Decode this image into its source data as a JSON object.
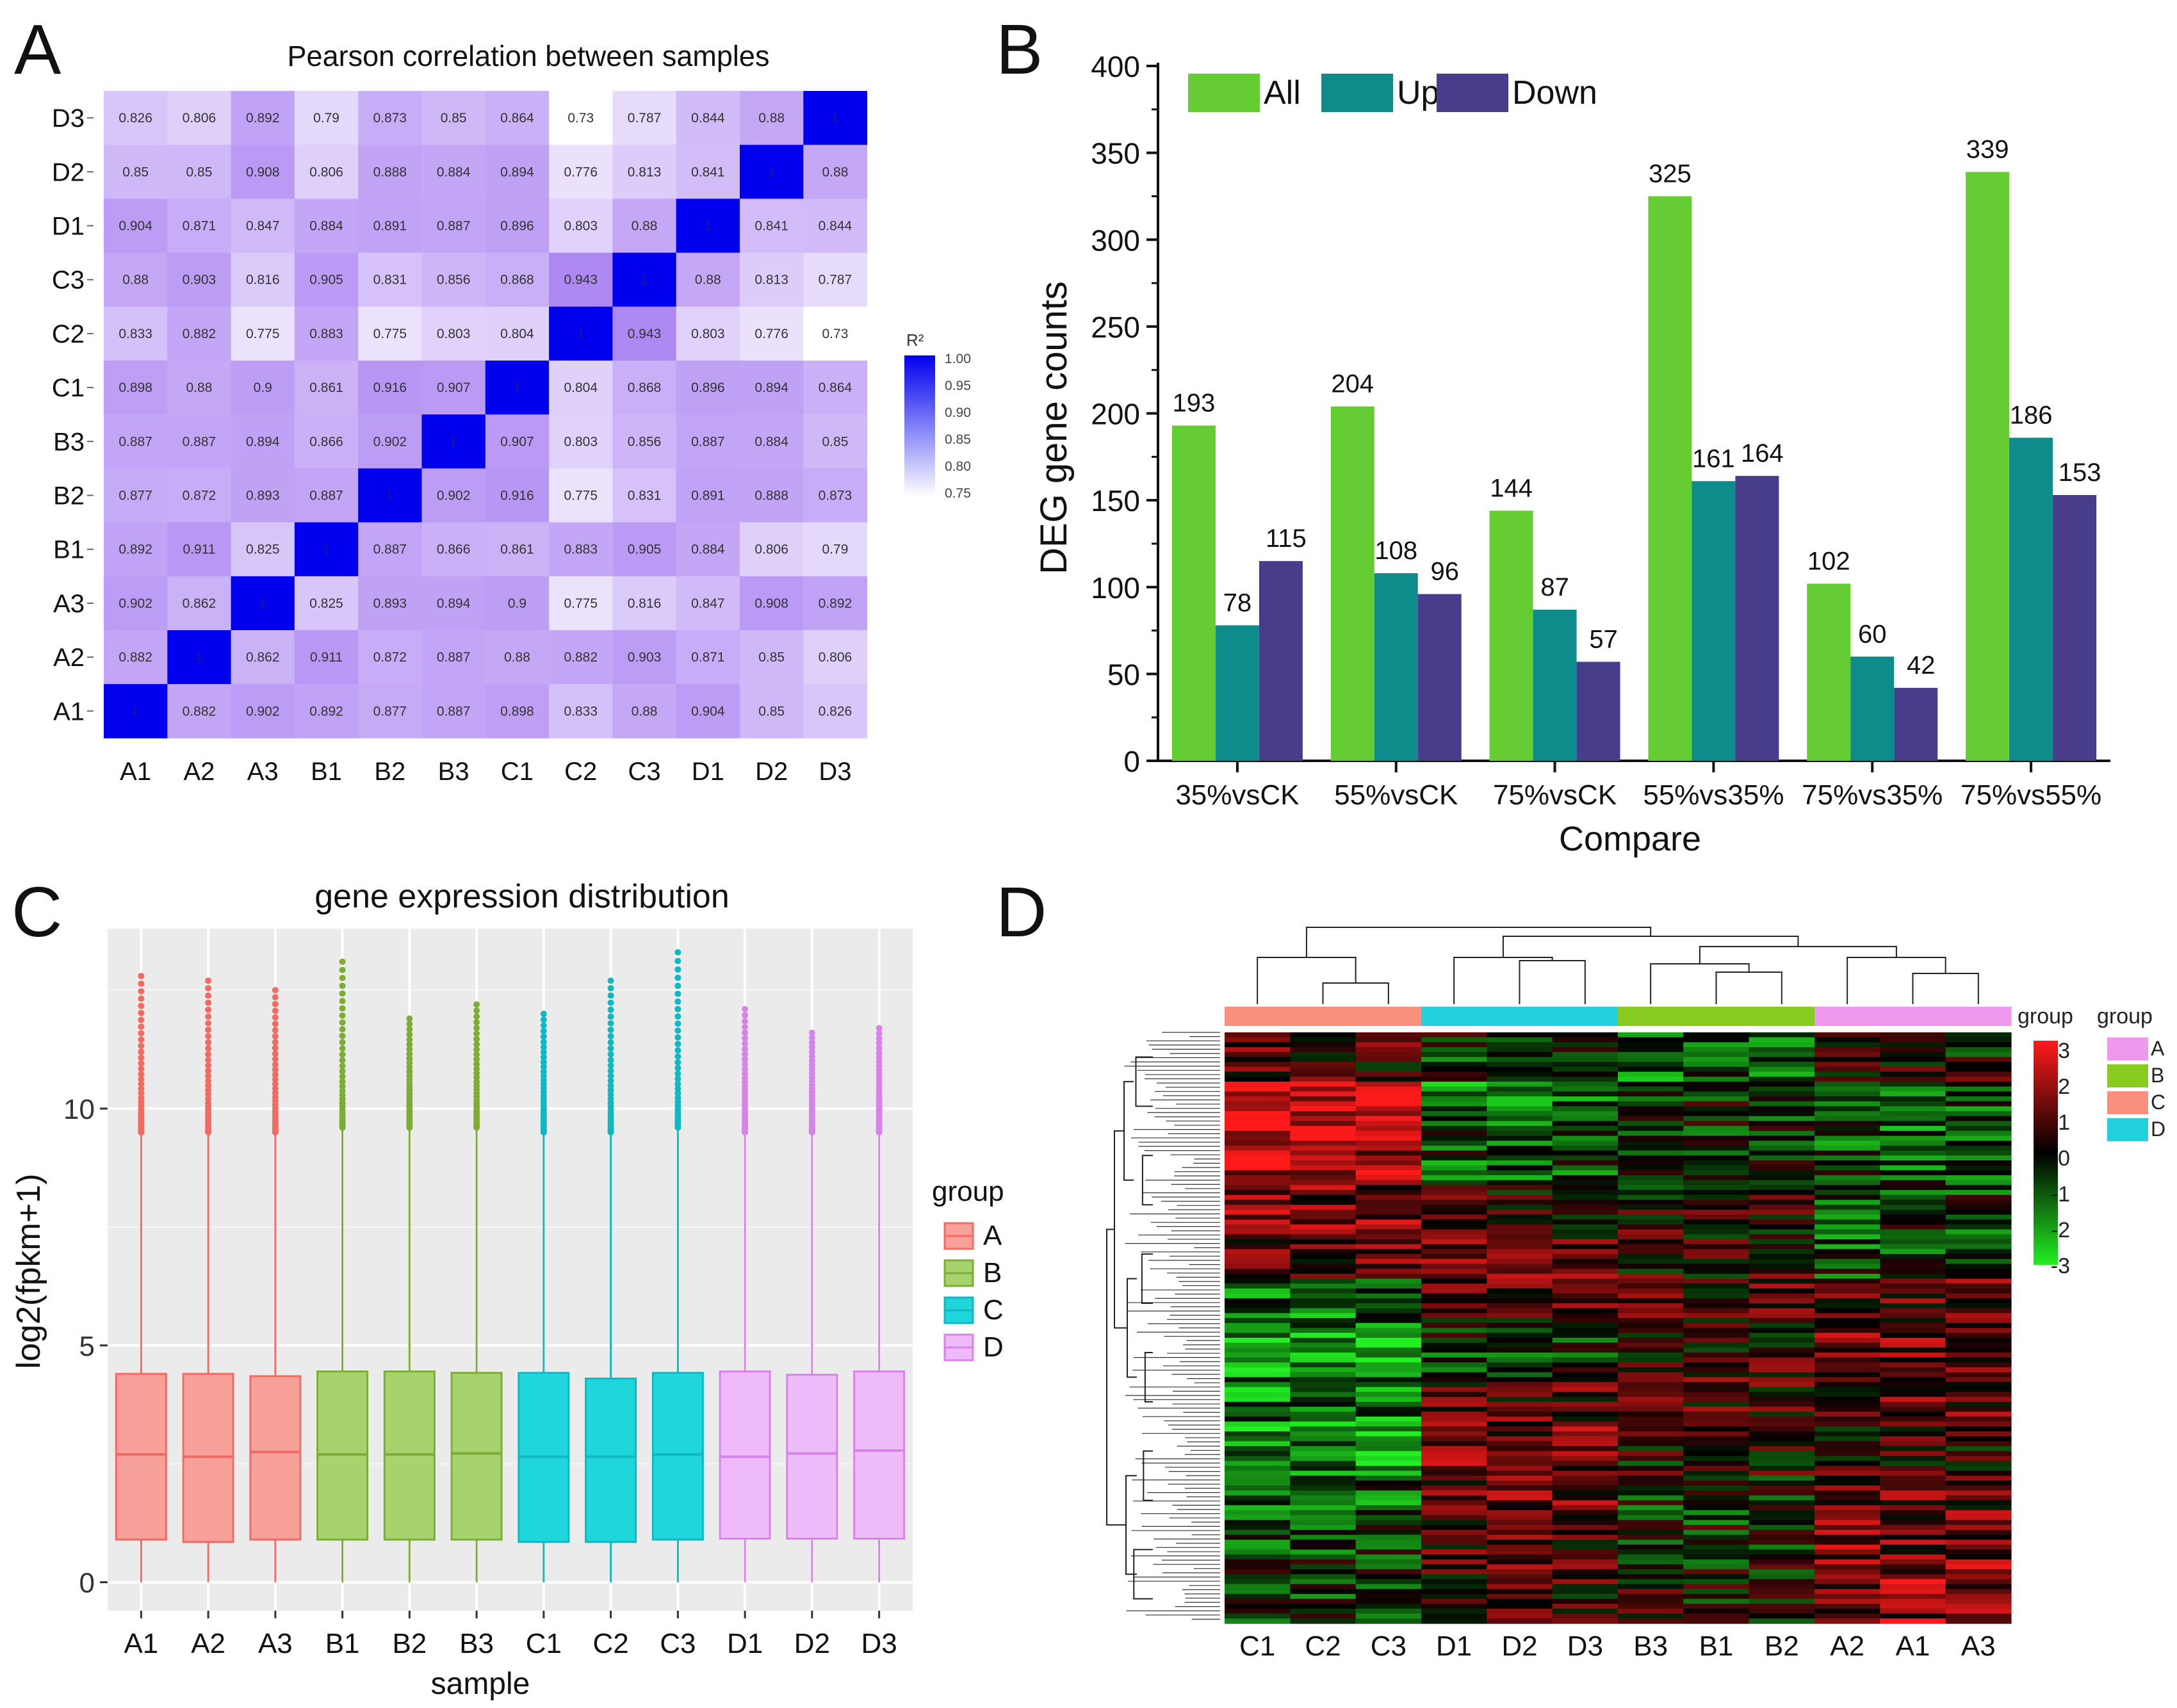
{
  "panels": {
    "A": {
      "letter": "A",
      "chart_data": {
        "type": "heatmap",
        "title": "Pearson  correlation between  samples",
        "row_labels": [
          "D3",
          "D2",
          "D1",
          "C3",
          "C2",
          "C1",
          "B3",
          "B2",
          "B1",
          "A3",
          "A2",
          "A1"
        ],
        "col_labels": [
          "A1",
          "A2",
          "A3",
          "B1",
          "B2",
          "B3",
          "C1",
          "C2",
          "C3",
          "D1",
          "D2",
          "D3"
        ],
        "values": [
          [
            "0.826",
            "0.806",
            "0.892",
            "0.79",
            "0.873",
            "0.85",
            "0.864",
            "0.73",
            "0.787",
            "0.844",
            "0.88",
            "1"
          ],
          [
            "0.85",
            "0.85",
            "0.908",
            "0.806",
            "0.888",
            "0.884",
            "0.894",
            "0.776",
            "0.813",
            "0.841",
            "1",
            "0.88"
          ],
          [
            "0.904",
            "0.871",
            "0.847",
            "0.884",
            "0.891",
            "0.887",
            "0.896",
            "0.803",
            "0.88",
            "1",
            "0.841",
            "0.844"
          ],
          [
            "0.88",
            "0.903",
            "0.816",
            "0.905",
            "0.831",
            "0.856",
            "0.868",
            "0.943",
            "1",
            "0.88",
            "0.813",
            "0.787"
          ],
          [
            "0.833",
            "0.882",
            "0.775",
            "0.883",
            "0.775",
            "0.803",
            "0.804",
            "1",
            "0.943",
            "0.803",
            "0.776",
            "0.73"
          ],
          [
            "0.898",
            "0.88",
            "0.9",
            "0.861",
            "0.916",
            "0.907",
            "1",
            "0.804",
            "0.868",
            "0.896",
            "0.894",
            "0.864"
          ],
          [
            "0.887",
            "0.887",
            "0.894",
            "0.866",
            "0.902",
            "1",
            "0.907",
            "0.803",
            "0.856",
            "0.887",
            "0.884",
            "0.85"
          ],
          [
            "0.877",
            "0.872",
            "0.893",
            "0.887",
            "1",
            "0.902",
            "0.916",
            "0.775",
            "0.831",
            "0.891",
            "0.888",
            "0.873"
          ],
          [
            "0.892",
            "0.911",
            "0.825",
            "1",
            "0.887",
            "0.866",
            "0.861",
            "0.883",
            "0.905",
            "0.884",
            "0.806",
            "0.79"
          ],
          [
            "0.902",
            "0.862",
            "1",
            "0.825",
            "0.893",
            "0.894",
            "0.9",
            "0.775",
            "0.816",
            "0.847",
            "0.908",
            "0.892"
          ],
          [
            "0.882",
            "1",
            "0.862",
            "0.911",
            "0.872",
            "0.887",
            "0.88",
            "0.882",
            "0.903",
            "0.871",
            "0.85",
            "0.806"
          ],
          [
            "1",
            "0.882",
            "0.902",
            "0.892",
            "0.877",
            "0.887",
            "0.898",
            "0.833",
            "0.88",
            "0.904",
            "0.85",
            "0.826"
          ]
        ],
        "colorbar_title": "R²",
        "colorbar_ticks": [
          "1.00",
          "0.95",
          "0.90",
          "0.85",
          "0.80",
          "0.75"
        ],
        "color_min": "#ffffff",
        "color_max": "#0000ee",
        "range": [
          0.73,
          1.0
        ]
      }
    },
    "B": {
      "letter": "B",
      "chart_data": {
        "type": "bar",
        "categories": [
          "35%vsCK",
          "55%vsCK",
          "75%vsCK",
          "55%vs35%",
          "75%vs35%",
          "75%vs55%"
        ],
        "series": [
          {
            "name": "All",
            "color": "#66cc33",
            "values": [
              193,
              204,
              144,
              325,
              102,
              339
            ]
          },
          {
            "name": "Up",
            "color": "#0e8b8b",
            "values": [
              78,
              108,
              87,
              161,
              60,
              186
            ]
          },
          {
            "name": "Down",
            "color": "#483d8b",
            "values": [
              115,
              96,
              57,
              164,
              42,
              153
            ]
          }
        ],
        "xlabel": "Compare",
        "ylabel": "DEG gene counts",
        "ylim": [
          0,
          400
        ],
        "yticks": [
          "0",
          "50",
          "100",
          "150",
          "200",
          "250",
          "300",
          "350",
          "400"
        ],
        "legend_position": "top-left"
      }
    },
    "C": {
      "letter": "C",
      "chart_data": {
        "type": "box",
        "title": "gene expression distribution",
        "xlabel": "sample",
        "ylabel": "log2(fpkm+1)",
        "ylim": [
          -0.6,
          13.8
        ],
        "yticks": [
          "0",
          "5",
          "10"
        ],
        "legend_title": "group",
        "groups": [
          {
            "name": "A",
            "fill": "#f8a09a",
            "stroke": "#f26b63"
          },
          {
            "name": "B",
            "fill": "#a6d36e",
            "stroke": "#7cae35"
          },
          {
            "name": "C",
            "fill": "#1fd6dd",
            "stroke": "#10b8c0"
          },
          {
            "name": "D",
            "fill": "#eebaf7",
            "stroke": "#d783ea"
          }
        ],
        "samples": [
          {
            "name": "A1",
            "group": 0,
            "q1": 0.9,
            "median": 2.7,
            "q3": 4.4,
            "max_whisker": 9.5,
            "outlier_top": 12.8
          },
          {
            "name": "A2",
            "group": 0,
            "q1": 0.85,
            "median": 2.65,
            "q3": 4.4,
            "max_whisker": 9.5,
            "outlier_top": 12.7
          },
          {
            "name": "A3",
            "group": 0,
            "q1": 0.9,
            "median": 2.75,
            "q3": 4.35,
            "max_whisker": 9.5,
            "outlier_top": 12.5
          },
          {
            "name": "B1",
            "group": 1,
            "q1": 0.9,
            "median": 2.7,
            "q3": 4.45,
            "max_whisker": 9.6,
            "outlier_top": 13.1
          },
          {
            "name": "B2",
            "group": 1,
            "q1": 0.9,
            "median": 2.7,
            "q3": 4.45,
            "max_whisker": 9.6,
            "outlier_top": 11.9
          },
          {
            "name": "B3",
            "group": 1,
            "q1": 0.9,
            "median": 2.72,
            "q3": 4.42,
            "max_whisker": 9.6,
            "outlier_top": 12.2
          },
          {
            "name": "C1",
            "group": 2,
            "q1": 0.85,
            "median": 2.65,
            "q3": 4.42,
            "max_whisker": 9.5,
            "outlier_top": 12.0
          },
          {
            "name": "C2",
            "group": 2,
            "q1": 0.85,
            "median": 2.65,
            "q3": 4.3,
            "max_whisker": 9.5,
            "outlier_top": 12.7
          },
          {
            "name": "C3",
            "group": 2,
            "q1": 0.9,
            "median": 2.7,
            "q3": 4.42,
            "max_whisker": 9.6,
            "outlier_top": 13.3
          },
          {
            "name": "D1",
            "group": 3,
            "q1": 0.92,
            "median": 2.65,
            "q3": 4.45,
            "max_whisker": 9.5,
            "outlier_top": 12.1
          },
          {
            "name": "D2",
            "group": 3,
            "q1": 0.92,
            "median": 2.72,
            "q3": 4.38,
            "max_whisker": 9.5,
            "outlier_top": 11.6
          },
          {
            "name": "D3",
            "group": 3,
            "q1": 0.92,
            "median": 2.78,
            "q3": 4.45,
            "max_whisker": 9.5,
            "outlier_top": 11.7
          }
        ]
      }
    },
    "D": {
      "letter": "D",
      "chart_data": {
        "type": "clustered-heatmap",
        "columns": [
          "C1",
          "C2",
          "C3",
          "D1",
          "D2",
          "D3",
          "B3",
          "B1",
          "B2",
          "A2",
          "A1",
          "A3"
        ],
        "column_groups": [
          "C",
          "C",
          "C",
          "D",
          "D",
          "D",
          "B",
          "B",
          "B",
          "A",
          "A",
          "A"
        ],
        "annotation_title_1": "group",
        "annotation_title_2": "group",
        "group_legend": [
          {
            "name": "A",
            "color": "#ee99ee"
          },
          {
            "name": "B",
            "color": "#88cc22"
          },
          {
            "name": "C",
            "color": "#f89080"
          },
          {
            "name": "D",
            "color": "#22d0dd"
          }
        ],
        "scale_ticks": [
          "3",
          "2",
          "1",
          "0",
          "-1",
          "-2",
          "-3"
        ],
        "scale_range": [
          -3,
          3
        ],
        "color_high": "#ff1a1a",
        "color_mid": "#000000",
        "color_low": "#22ee22"
      }
    }
  }
}
